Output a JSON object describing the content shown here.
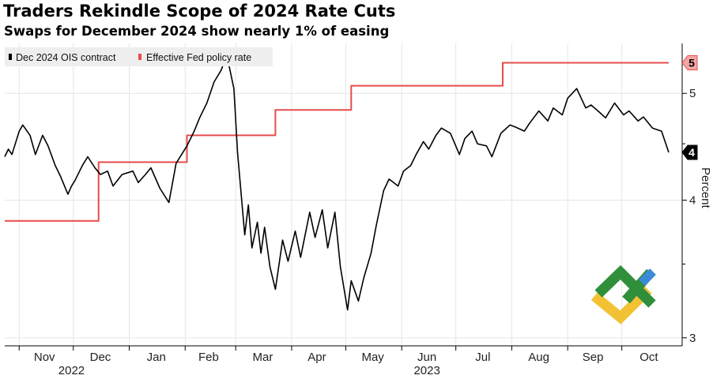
{
  "chart_data": {
    "type": "line",
    "title": "Traders Rekindle Scope of 2024 Rate Cuts",
    "subtitle": "Swaps for December 2024 show nearly 1% of easing",
    "ylabel": "Percent",
    "ylim": [
      2.95,
      5.55
    ],
    "yticks": [
      3,
      4,
      5
    ],
    "y_tick_labels": [
      "3",
      "4",
      "5"
    ],
    "x_tick_labels": [
      "Nov",
      "Dec",
      "Jan",
      "Feb",
      "Mar",
      "Apr",
      "May",
      "Jun",
      "Jul",
      "Aug",
      "Sep",
      "Oct"
    ],
    "x_year_labels": [
      "2022",
      "2023"
    ],
    "grid": true,
    "legend_position": "top-left",
    "series": [
      {
        "name": "Dec 2024 OIS contract",
        "color": "#000000",
        "last_value_label": "4",
        "x": [
          "2022-10-24",
          "2022-10-26",
          "2022-10-28",
          "2022-11-01",
          "2022-11-03",
          "2022-11-07",
          "2022-11-10",
          "2022-11-14",
          "2022-11-17",
          "2022-11-21",
          "2022-11-24",
          "2022-11-28",
          "2022-11-30",
          "2022-12-02",
          "2022-12-06",
          "2022-12-09",
          "2022-12-13",
          "2022-12-16",
          "2022-12-20",
          "2022-12-23",
          "2022-12-28",
          "2023-01-03",
          "2023-01-06",
          "2023-01-10",
          "2023-01-13",
          "2023-01-18",
          "2023-01-23",
          "2023-01-27",
          "2023-02-02",
          "2023-02-06",
          "2023-02-09",
          "2023-02-13",
          "2023-02-17",
          "2023-02-21",
          "2023-02-24",
          "2023-02-28",
          "2023-03-02",
          "2023-03-06",
          "2023-03-08",
          "2023-03-10",
          "2023-03-13",
          "2023-03-15",
          "2023-03-17",
          "2023-03-20",
          "2023-03-23",
          "2023-03-27",
          "2023-03-30",
          "2023-04-03",
          "2023-04-06",
          "2023-04-11",
          "2023-04-14",
          "2023-04-18",
          "2023-04-21",
          "2023-04-25",
          "2023-04-28",
          "2023-05-02",
          "2023-05-04",
          "2023-05-08",
          "2023-05-11",
          "2023-05-15",
          "2023-05-18",
          "2023-05-22",
          "2023-05-25",
          "2023-05-30",
          "2023-06-02",
          "2023-06-06",
          "2023-06-09",
          "2023-06-13",
          "2023-06-16",
          "2023-06-20",
          "2023-06-23",
          "2023-06-28",
          "2023-07-03",
          "2023-07-06",
          "2023-07-10",
          "2023-07-13",
          "2023-07-18",
          "2023-07-21",
          "2023-07-26",
          "2023-07-31",
          "2023-08-03",
          "2023-08-08",
          "2023-08-11",
          "2023-08-16",
          "2023-08-21",
          "2023-08-24",
          "2023-08-29",
          "2023-09-01",
          "2023-09-06",
          "2023-09-11",
          "2023-09-14",
          "2023-09-19",
          "2023-09-22",
          "2023-09-27",
          "2023-10-02",
          "2023-10-05",
          "2023-10-10",
          "2023-10-13",
          "2023-10-18",
          "2023-10-23",
          "2023-10-27"
        ],
        "y": [
          4.38,
          4.45,
          4.4,
          4.62,
          4.68,
          4.58,
          4.4,
          4.58,
          4.48,
          4.3,
          4.2,
          4.05,
          4.12,
          4.17,
          4.3,
          4.38,
          4.28,
          4.22,
          4.25,
          4.12,
          4.22,
          4.25,
          4.15,
          4.22,
          4.28,
          4.1,
          3.98,
          4.32,
          4.48,
          4.62,
          4.75,
          4.9,
          5.12,
          5.25,
          5.42,
          5.05,
          4.42,
          3.72,
          3.96,
          3.62,
          3.82,
          3.58,
          3.78,
          3.48,
          3.32,
          3.68,
          3.52,
          3.75,
          3.55,
          3.9,
          3.7,
          3.92,
          3.62,
          3.9,
          3.48,
          3.18,
          3.38,
          3.24,
          3.4,
          3.58,
          3.8,
          4.08,
          4.18,
          4.12,
          4.25,
          4.3,
          4.4,
          4.52,
          4.45,
          4.58,
          4.65,
          4.6,
          4.4,
          4.55,
          4.62,
          4.5,
          4.48,
          4.38,
          4.6,
          4.68,
          4.66,
          4.62,
          4.7,
          4.82,
          4.72,
          4.85,
          4.78,
          4.95,
          5.05,
          4.85,
          4.88,
          4.8,
          4.75,
          4.9,
          4.78,
          4.82,
          4.72,
          4.76,
          4.65,
          4.62,
          4.42
        ]
      },
      {
        "name": "Effective Fed policy rate",
        "color": "#e84c4c",
        "last_value_label": "5",
        "step": true,
        "x": [
          "2022-10-24",
          "2022-11-03",
          "2022-12-15",
          "2023-02-02",
          "2023-03-23",
          "2023-05-04",
          "2023-07-27",
          "2023-10-27"
        ],
        "y": [
          3.83,
          3.83,
          4.33,
          4.58,
          4.83,
          5.08,
          5.33,
          5.33
        ]
      }
    ]
  }
}
